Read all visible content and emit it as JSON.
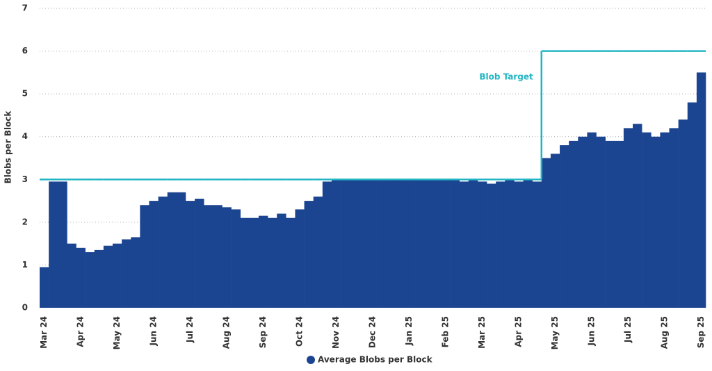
{
  "chart_data": {
    "type": "bar",
    "y_label": "Blobs per Block",
    "categories": [
      "Mar 24",
      null,
      null,
      null,
      "Apr 24",
      null,
      null,
      null,
      "May 24",
      null,
      null,
      null,
      "Jun 24",
      null,
      null,
      null,
      "Jul 24",
      null,
      null,
      null,
      "Aug 24",
      null,
      null,
      null,
      "Sep 24",
      null,
      null,
      null,
      "Oct 24",
      null,
      null,
      null,
      "Nov 24",
      null,
      null,
      null,
      "Dec 24",
      null,
      null,
      null,
      "Jan 25",
      null,
      null,
      null,
      "Feb 25",
      null,
      null,
      null,
      "Mar 25",
      null,
      null,
      null,
      "Apr 25",
      null,
      null,
      null,
      "May 25",
      null,
      null,
      null,
      "Jun 25",
      null,
      null,
      null,
      "Jul 25",
      null,
      null,
      null,
      "Aug 25",
      null,
      null,
      null,
      "Sep 25"
    ],
    "series": [
      {
        "name": "Average Blobs per Block",
        "type": "bar",
        "color": "#1c4591",
        "values": [
          0.95,
          2.95,
          2.95,
          1.5,
          1.4,
          1.3,
          1.35,
          1.45,
          1.5,
          1.6,
          1.65,
          2.4,
          2.5,
          2.6,
          2.7,
          2.7,
          2.5,
          2.55,
          2.4,
          2.4,
          2.35,
          2.3,
          2.1,
          2.1,
          2.15,
          2.1,
          2.2,
          2.1,
          2.3,
          2.5,
          2.6,
          2.95,
          3,
          3,
          2.98,
          3,
          3,
          2.98,
          3,
          3,
          3,
          3,
          2.98,
          3,
          2.98,
          3,
          2.95,
          2.98,
          2.95,
          2.9,
          2.95,
          2.98,
          2.95,
          2.98,
          2.95,
          3.5,
          3.6,
          3.8,
          3.9,
          4,
          4.1,
          4,
          3.9,
          3.9,
          4.2,
          4.3,
          4.1,
          4,
          4.1,
          4.2,
          4.4,
          4.8,
          5.5
        ]
      },
      {
        "name": "Blob Target",
        "type": "step",
        "color": "#1fb5c4",
        "values": [
          3,
          3,
          3,
          3,
          3,
          3,
          3,
          3,
          3,
          3,
          3,
          3,
          3,
          3,
          3,
          3,
          3,
          3,
          3,
          3,
          3,
          3,
          3,
          3,
          3,
          3,
          3,
          3,
          3,
          3,
          3,
          3,
          3,
          3,
          3,
          3,
          3,
          3,
          3,
          3,
          3,
          3,
          3,
          3,
          3,
          3,
          3,
          3,
          3,
          3,
          3,
          3,
          3,
          3,
          3,
          6,
          6,
          6,
          6,
          6,
          6,
          6,
          6,
          6,
          6,
          6,
          6,
          6,
          6,
          6,
          6,
          6,
          6
        ]
      }
    ],
    "ylim": [
      0,
      7
    ],
    "yticks": [
      0,
      1,
      2,
      3,
      4,
      5,
      6,
      7
    ],
    "grid": true,
    "legend": "bottom"
  }
}
